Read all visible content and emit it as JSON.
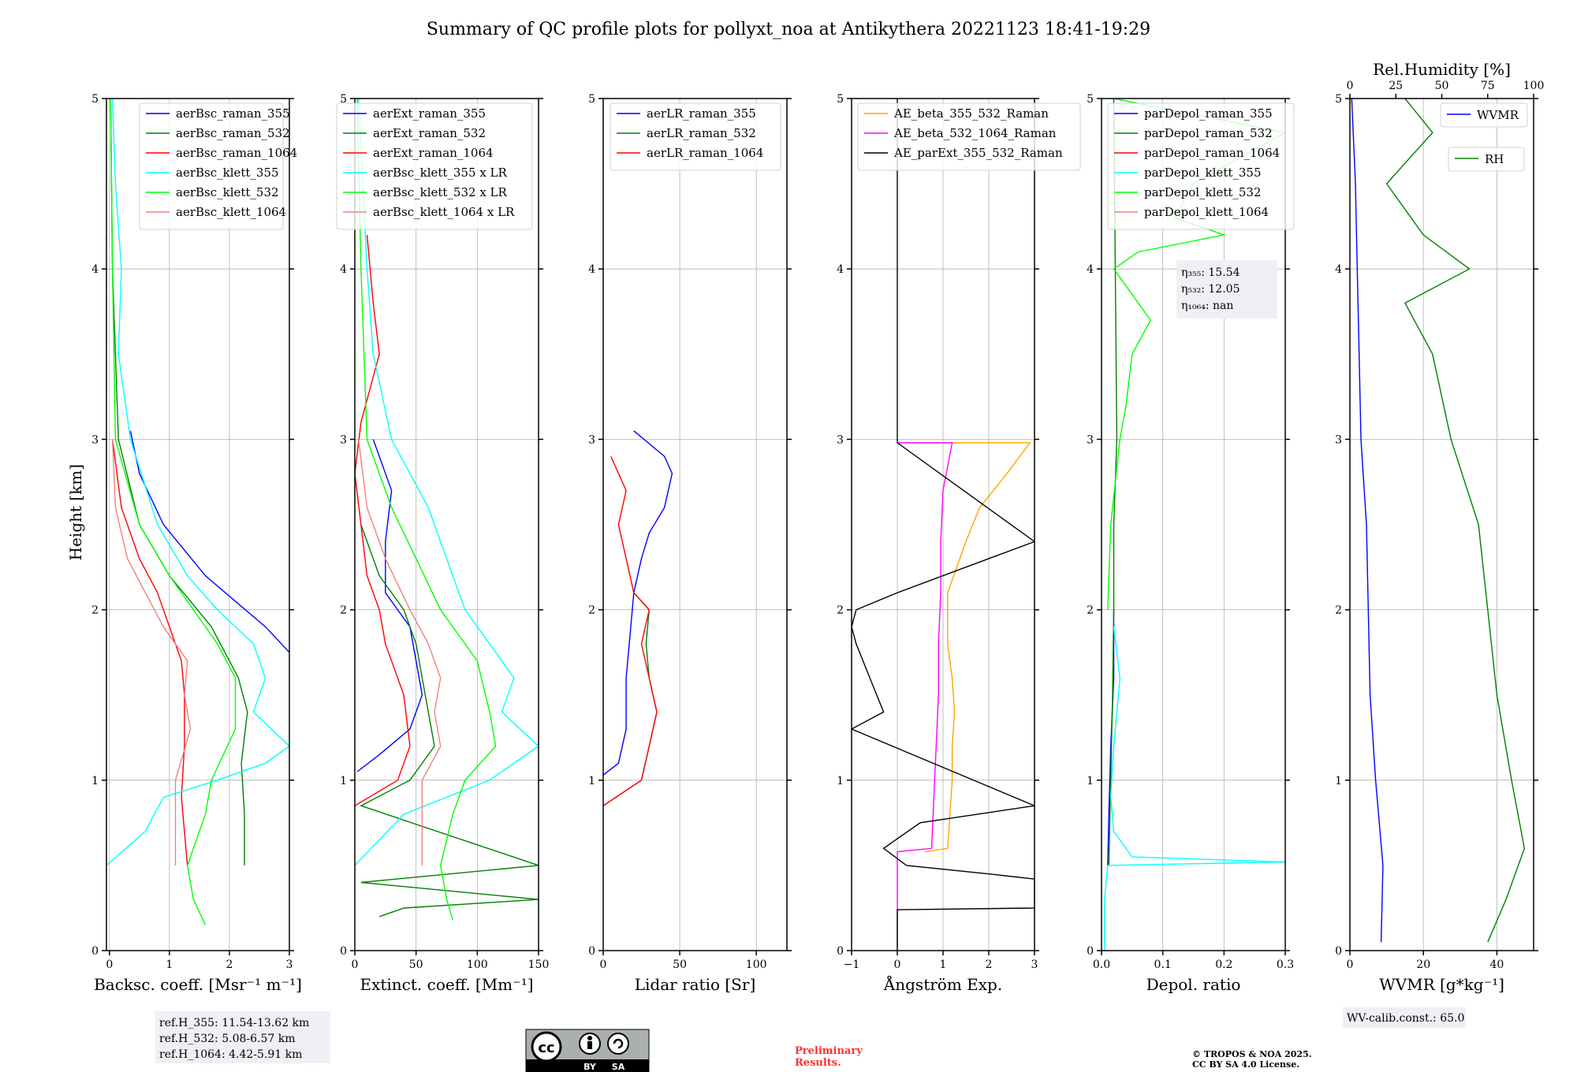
{
  "title": "Summary of QC profile plots for pollyxt_noa at Antikythera 20221123 18:41-19:29",
  "chart_data": [
    {
      "type": "line",
      "xlabel": "Backsc. coeff. [Msr⁻¹ m⁻¹]",
      "ylabel": "Height [km]",
      "xlim": [
        -0.05,
        3
      ],
      "ylim": [
        0,
        5
      ],
      "xticks": [
        0,
        1,
        2,
        3
      ],
      "yticks": [
        0,
        1,
        2,
        3,
        4,
        5
      ],
      "grid": true,
      "legend_position": "top-right",
      "series": [
        {
          "name": "aerBsc_raman_355",
          "color": "#0000ff",
          "y": [
            3.05,
            2.8,
            2.5,
            2.2,
            2.05,
            1.9,
            1.75
          ],
          "x": [
            0.35,
            0.5,
            0.9,
            1.6,
            2.1,
            2.6,
            3.0
          ]
        },
        {
          "name": "aerBsc_raman_532",
          "color": "#008000",
          "y": [
            5,
            4,
            3,
            2.5,
            2.2,
            1.9,
            1.6,
            1.4,
            1.1,
            0.8,
            0.5
          ],
          "x": [
            0.02,
            0.05,
            0.15,
            0.5,
            1.0,
            1.7,
            2.15,
            2.3,
            2.2,
            2.25,
            2.25
          ]
        },
        {
          "name": "aerBsc_raman_1064",
          "color": "#ff0000",
          "y": [
            3,
            2.6,
            2.3,
            2.1,
            1.9,
            1.7,
            1.5,
            1.2,
            0.9,
            0.5
          ],
          "x": [
            0.05,
            0.2,
            0.5,
            0.8,
            1.0,
            1.2,
            1.25,
            1.25,
            1.2,
            1.3
          ]
        },
        {
          "name": "aerBsc_klett_355",
          "color": "#00ffff",
          "y": [
            5,
            4.5,
            4,
            3.5,
            3,
            2.5,
            2.2,
            2,
            1.8,
            1.6,
            1.4,
            1.2,
            1.1,
            1.0,
            0.9,
            0.7,
            0.5
          ],
          "x": [
            0.05,
            0.1,
            0.2,
            0.15,
            0.35,
            0.8,
            1.3,
            1.8,
            2.4,
            2.6,
            2.4,
            3.0,
            2.6,
            1.8,
            0.9,
            0.6,
            -0.05
          ]
        },
        {
          "name": "aerBsc_klett_532",
          "color": "#00ff00",
          "y": [
            5,
            4,
            3,
            2.5,
            2.2,
            2.0,
            1.8,
            1.6,
            1.3,
            1.0,
            0.8,
            0.5,
            0.3,
            0.15
          ],
          "x": [
            0.02,
            0.05,
            0.1,
            0.5,
            1.0,
            1.4,
            1.8,
            2.1,
            2.1,
            1.7,
            1.6,
            1.3,
            1.4,
            1.6
          ]
        },
        {
          "name": "aerBsc_klett_1064",
          "color": "#f08080",
          "y": [
            3,
            2.6,
            2.3,
            2.1,
            1.9,
            1.7,
            1.5,
            1.3,
            1.0,
            0.7,
            0.5
          ],
          "x": [
            0.05,
            0.1,
            0.3,
            0.6,
            0.9,
            1.3,
            1.25,
            1.35,
            1.1,
            1.1,
            1.1
          ]
        }
      ],
      "annotation": "ref.H_355: 11.54-13.62 km\nref.H_532: 5.08-6.57 km\nref.H_1064: 4.42-5.91 km"
    },
    {
      "type": "line",
      "xlabel": "Extinct. coeff. [Mm⁻¹]",
      "xlim": [
        0,
        150
      ],
      "ylim": [
        0,
        5
      ],
      "xticks": [
        0,
        50,
        100,
        150
      ],
      "yticks": [
        0,
        1,
        2,
        3,
        4,
        5
      ],
      "grid": true,
      "legend_position": "top-right",
      "series": [
        {
          "name": "aerExt_raman_355",
          "color": "#0000ff",
          "y": [
            3.0,
            2.7,
            2.4,
            2.1,
            1.9,
            1.7,
            1.5,
            1.3,
            1.15,
            1.05
          ],
          "x": [
            15,
            30,
            25,
            25,
            45,
            50,
            55,
            45,
            20,
            2
          ]
        },
        {
          "name": "aerExt_raman_532",
          "color": "#008000",
          "y": [
            2.5,
            2.2,
            2.0,
            1.8,
            1.6,
            1.4,
            1.2,
            1.0,
            0.85,
            0.5,
            0.4,
            0.3,
            0.25,
            0.2
          ],
          "x": [
            5,
            20,
            40,
            50,
            55,
            60,
            65,
            45,
            5,
            150,
            5,
            150,
            40,
            20
          ]
        },
        {
          "name": "aerExt_raman_1064",
          "color": "#ff0000",
          "y": [
            4.2,
            3.8,
            3.5,
            3.1,
            2.8,
            2.5,
            2.2,
            2.0,
            1.8,
            1.5,
            1.2,
            1.0,
            0.85
          ],
          "x": [
            10,
            15,
            20,
            5,
            0,
            5,
            10,
            20,
            25,
            40,
            45,
            35,
            0
          ]
        },
        {
          "name": "aerBsc_klett_355 x LR",
          "color": "#00ffff",
          "y": [
            5,
            4,
            3.5,
            3,
            2.6,
            2.4,
            2.2,
            2.0,
            1.8,
            1.6,
            1.4,
            1.2,
            1.0,
            0.8,
            0.5
          ],
          "x": [
            3,
            10,
            15,
            30,
            60,
            70,
            80,
            90,
            110,
            130,
            120,
            150,
            110,
            40,
            0
          ]
        },
        {
          "name": "aerBsc_klett_532 x LR",
          "color": "#00ff00",
          "y": [
            5,
            4,
            3,
            2.6,
            2.3,
            2.0,
            1.7,
            1.4,
            1.2,
            1.0,
            0.8,
            0.5,
            0.3,
            0.18
          ],
          "x": [
            2,
            5,
            10,
            30,
            50,
            70,
            100,
            110,
            115,
            90,
            80,
            70,
            75,
            80
          ]
        },
        {
          "name": "aerBsc_klett_1064 x LR",
          "color": "#f08080",
          "y": [
            3,
            2.6,
            2.3,
            2.0,
            1.8,
            1.6,
            1.4,
            1.2,
            1.0,
            0.8,
            0.5
          ],
          "x": [
            3,
            10,
            25,
            45,
            60,
            70,
            65,
            70,
            55,
            55,
            55
          ]
        }
      ]
    },
    {
      "type": "line",
      "xlabel": "Lidar ratio [Sr]",
      "xlim": [
        0,
        120
      ],
      "ylim": [
        0,
        5
      ],
      "xticks": [
        0,
        50,
        100
      ],
      "yticks": [
        0,
        1,
        2,
        3,
        4,
        5
      ],
      "grid": true,
      "legend_position": "top-right",
      "series": [
        {
          "name": "aerLR_raman_355",
          "color": "#0000ff",
          "y": [
            3.05,
            2.9,
            2.8,
            2.6,
            2.45,
            2.3,
            2.1,
            1.9,
            1.6,
            1.3,
            1.1,
            1.03
          ],
          "x": [
            20,
            40,
            45,
            40,
            30,
            25,
            20,
            18,
            15,
            15,
            10,
            0
          ]
        },
        {
          "name": "aerLR_raman_532",
          "color": "#008000",
          "y": [
            2.1,
            2.0,
            1.8,
            1.6,
            1.4,
            1.2,
            1.0,
            0.85
          ],
          "x": [
            20,
            30,
            28,
            30,
            35,
            30,
            25,
            0
          ]
        },
        {
          "name": "aerLR_raman_1064",
          "color": "#ff0000",
          "y": [
            2.9,
            2.7,
            2.5,
            2.3,
            2.1,
            2.0,
            1.8,
            1.6,
            1.4,
            1.2,
            1.0,
            0.85
          ],
          "x": [
            5,
            15,
            10,
            15,
            20,
            30,
            25,
            30,
            35,
            30,
            25,
            0
          ]
        }
      ]
    },
    {
      "type": "line",
      "xlabel": "Ångström Exp.",
      "xlim": [
        -1,
        3
      ],
      "ylim": [
        0,
        5
      ],
      "xticks": [
        -1,
        0,
        1,
        2,
        3
      ],
      "yticks": [
        0,
        1,
        2,
        3,
        4,
        5
      ],
      "grid": true,
      "legend_position": "top-left",
      "series": [
        {
          "name": "AE_beta_355_532_Raman",
          "color": "#ffa500",
          "y": [
            2.98,
            2.98,
            2.8,
            2.6,
            2.4,
            2.1,
            1.8,
            1.6,
            1.4,
            1.2,
            1.0,
            0.8,
            0.6,
            0.58
          ],
          "x": [
            0,
            2.9,
            2.4,
            1.8,
            1.5,
            1.1,
            1.1,
            1.2,
            1.25,
            1.2,
            1.2,
            1.15,
            1.1,
            0.6
          ]
        },
        {
          "name": "AE_beta_532_1064_Raman",
          "color": "#ff00ff",
          "y": [
            2.98,
            2.98,
            2.7,
            2.4,
            2.1,
            1.8,
            1.5,
            1.2,
            0.9,
            0.6,
            0.58,
            0
          ],
          "x": [
            0,
            1.2,
            1.0,
            0.95,
            0.95,
            0.9,
            0.9,
            0.85,
            0.8,
            0.75,
            0,
            0
          ]
        },
        {
          "name": "AE_parExt_355_532_Raman",
          "color": "#000000",
          "y": [
            5,
            2.98,
            2.98,
            2.4,
            2.3,
            2.1,
            2.0,
            1.9,
            1.8,
            1.6,
            1.4,
            1.3,
            0.85,
            0.75,
            0.6,
            0.5,
            0.45,
            0.42,
            0.25,
            0.24,
            0
          ],
          "x": [
            0,
            0,
            0,
            3,
            2.0,
            0,
            -0.9,
            -1,
            -0.9,
            -0.6,
            -0.3,
            -1,
            3,
            0.5,
            -0.3,
            0.2,
            2,
            3,
            3,
            0,
            0
          ]
        }
      ]
    },
    {
      "type": "line",
      "xlabel": "Depol. ratio",
      "xlim": [
        0,
        0.3
      ],
      "ylim": [
        0,
        5
      ],
      "xticks": [
        0.0,
        0.1,
        0.2,
        0.3
      ],
      "yticks": [
        0,
        1,
        2,
        3,
        4,
        5
      ],
      "grid": true,
      "legend_position": "top-left",
      "series": [
        {
          "name": "parDepol_raman_355",
          "color": "#0000ff",
          "y": [
            2.0,
            1.6,
            1.2,
            0.8,
            0.5
          ],
          "x": [
            0.02,
            0.02,
            0.015,
            0.012,
            0.01
          ]
        },
        {
          "name": "parDepol_raman_532",
          "color": "#008000",
          "y": [
            5,
            3.0,
            2.5,
            2.0,
            1.5,
            1.0,
            0.5
          ],
          "x": [
            0.02,
            0.025,
            0.02,
            0.02,
            0.018,
            0.015,
            0.012
          ]
        },
        {
          "name": "parDepol_raman_1064",
          "color": "#ff0000",
          "y": [],
          "x": []
        },
        {
          "name": "parDepol_klett_355",
          "color": "#00ffff",
          "y": [
            1.9,
            1.6,
            1.2,
            0.9,
            0.7,
            0.55,
            0.52,
            0.5,
            0.3,
            0
          ],
          "x": [
            0.02,
            0.03,
            0.02,
            0.015,
            0.02,
            0.05,
            0.3,
            0.01,
            0.005,
            0.005
          ]
        },
        {
          "name": "parDepol_klett_532",
          "color": "#00ff00",
          "y": [
            5,
            4.8,
            4.5,
            4.3,
            4.2,
            4.1,
            4.0,
            3.9,
            3.7,
            3.5,
            3.2,
            3.0,
            2.5,
            2.0
          ],
          "x": [
            0.02,
            0.3,
            0.15,
            0.12,
            0.2,
            0.06,
            0.02,
            0.04,
            0.08,
            0.05,
            0.04,
            0.03,
            0.015,
            0.01
          ]
        },
        {
          "name": "parDepol_klett_1064",
          "color": "#f08080",
          "y": [],
          "x": []
        }
      ],
      "annotation": [
        "η₃₅₅: 15.54",
        "η₅₃₂: 12.05",
        "η₁₀₆₄: nan"
      ]
    },
    {
      "type": "line",
      "xlabel": "WVMR [g*kg⁻¹]",
      "x2label": "Rel.Humidity [%]",
      "xlim": [
        0,
        50
      ],
      "x2lim": [
        0,
        100
      ],
      "ylim": [
        0,
        5
      ],
      "xticks": [
        0,
        20,
        40
      ],
      "x2ticks": [
        0,
        25,
        50,
        75,
        100
      ],
      "yticks": [
        0,
        1,
        2,
        3,
        4,
        5
      ],
      "grid": true,
      "legend_position": "top-right",
      "series": [
        {
          "name": "WVMR",
          "color": "#0000ff",
          "axis": "bottom",
          "y": [
            0.05,
            0.5,
            1.0,
            1.5,
            2.0,
            2.5,
            3.0,
            3.5,
            4.0,
            4.5,
            5.0
          ],
          "x": [
            8.5,
            9,
            7,
            5.5,
            5,
            4.5,
            3,
            2.5,
            2,
            1.5,
            0.5
          ]
        },
        {
          "name": "RH",
          "color": "#008000",
          "axis": "top",
          "y": [
            0.05,
            0.3,
            0.6,
            1.0,
            1.5,
            2.0,
            2.5,
            3.0,
            3.5,
            3.8,
            4.0,
            4.2,
            4.5,
            4.8,
            5.0
          ],
          "x": [
            75,
            85,
            95,
            88,
            80,
            75,
            70,
            55,
            45,
            30,
            65,
            40,
            20,
            45,
            30
          ]
        }
      ],
      "annotation": "WV-calib.const.: 65.0"
    }
  ],
  "footer": {
    "cc_by": "BY",
    "cc_sa": "SA",
    "preliminary_line1": "Preliminary",
    "preliminary_line2": "Results.",
    "copyright_line1": "© TROPOS & NOA 2025.",
    "copyright_line2": "CC BY SA 4.0 License."
  }
}
